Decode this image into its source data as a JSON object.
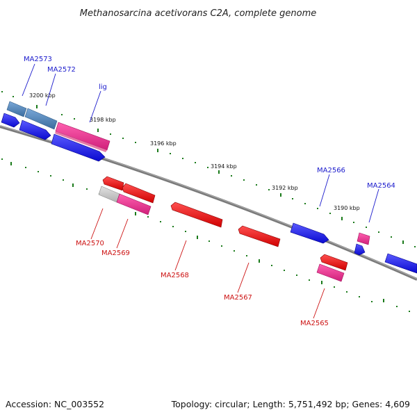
{
  "title": "Methanosarcina acetivorans C2A, complete genome",
  "footer": {
    "accession": "Accession: NC_003552",
    "summary": "Topology: circular; Length: 5,751,492 bp; Genes: 4,609"
  },
  "kbp_labels": [
    "3200 kbp",
    "3198 kbp",
    "3196 kbp",
    "3194 kbp",
    "3192 kbp",
    "3190 kbp"
  ],
  "genes_top": [
    "MA2573",
    "MA2572",
    "lig",
    "MA2566",
    "MA2564"
  ],
  "genes_bottom": [
    "MA2570",
    "MA2569",
    "MA2568",
    "MA2567",
    "MA2565"
  ],
  "colors": {
    "backbone": "#808080",
    "tick": "#1a7a1a",
    "forward_gene": "#1a1aee",
    "reverse_gene": "#ee1111",
    "rna_like": "#e0308a",
    "other": "#4a7fb5",
    "pseudo": "#c8c8c8",
    "label_top": "#1a1acc",
    "label_bottom": "#cc1111"
  }
}
